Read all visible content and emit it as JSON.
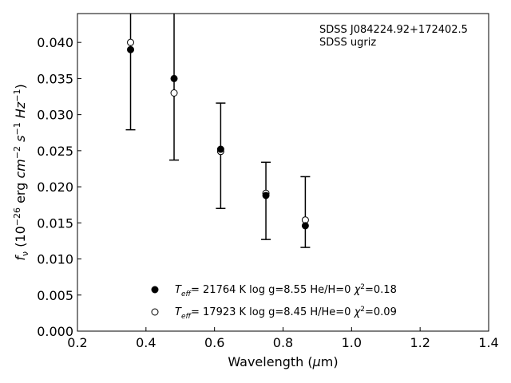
{
  "chart_data": {
    "type": "scatter",
    "xlabel_parts": [
      "Wavelength (",
      "μ",
      "m)"
    ],
    "ylabel_parts": [
      "f",
      "ν",
      " (10",
      "−26",
      " erg ",
      "cm",
      "−2",
      " ",
      "s",
      "−1",
      " ",
      "Hz",
      "−1",
      ")"
    ],
    "xlim": [
      0.2,
      1.4
    ],
    "ylim": [
      0.0,
      0.044
    ],
    "xticks": [
      0.2,
      0.4,
      0.6,
      0.8,
      1.0,
      1.2,
      1.4
    ],
    "xtick_labels": [
      "0.2",
      "0.4",
      "0.6",
      "0.8",
      "1.0",
      "1.2",
      "1.4"
    ],
    "yticks": [
      0.0,
      0.005,
      0.01,
      0.015,
      0.02,
      0.025,
      0.03,
      0.035,
      0.04
    ],
    "ytick_labels": [
      "0.000",
      "0.005",
      "0.010",
      "0.015",
      "0.020",
      "0.025",
      "0.030",
      "0.035",
      "0.040"
    ],
    "grid": false,
    "annotations": [
      "SDSS J084224.92+172402.5",
      "SDSS ugriz"
    ],
    "observed": {
      "x": [
        0.355,
        0.482,
        0.618,
        0.75,
        0.865
      ],
      "y": [
        0.039,
        0.035,
        0.0252,
        0.0188,
        0.0146
      ],
      "yerr_low": [
        0.0279,
        0.0237,
        0.017,
        0.0127,
        0.0116
      ],
      "yerr_high": [
        0.05,
        0.0463,
        0.0316,
        0.0234,
        0.0214
      ]
    },
    "series": [
      {
        "marker": "filled",
        "legend_parts": [
          {
            "t": "T",
            "s": "n"
          },
          {
            "t": "eff",
            "s": "sub"
          },
          {
            "t": "= 21764 K  log g=8.55  He/H=0  ",
            "s": "n"
          },
          {
            "t": "χ",
            "s": "n"
          },
          {
            "t": "2",
            "s": "sup"
          },
          {
            "t": "=0.18",
            "s": "n"
          }
        ]
      },
      {
        "marker": "open",
        "x": [
          0.355,
          0.482,
          0.618,
          0.75,
          0.865
        ],
        "y": [
          0.04,
          0.033,
          0.0249,
          0.0191,
          0.0154
        ],
        "legend_parts": [
          {
            "t": "T",
            "s": "n"
          },
          {
            "t": "eff",
            "s": "sub"
          },
          {
            "t": "= 17923 K  log g=8.45  H/He=0  ",
            "s": "n"
          },
          {
            "t": "χ",
            "s": "n"
          },
          {
            "t": "2",
            "s": "sup"
          },
          {
            "t": "=0.09",
            "s": "n"
          }
        ]
      }
    ],
    "legend_position": "lower-center"
  }
}
